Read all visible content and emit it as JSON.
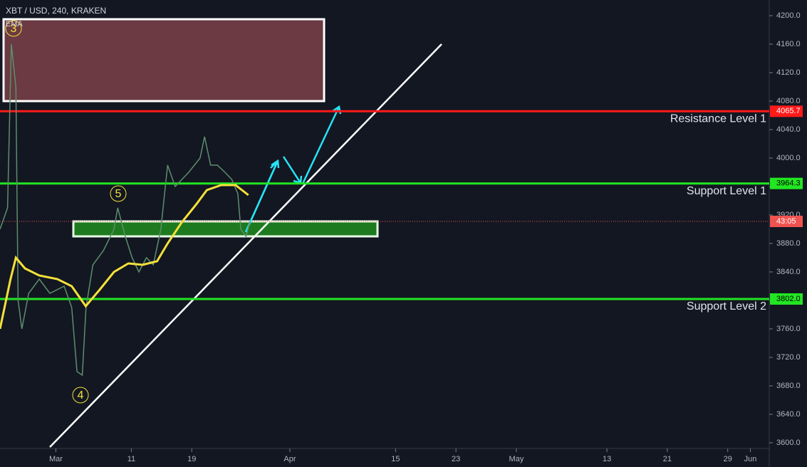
{
  "chart_data": {
    "type": "line",
    "title": "XBT / USD, 240, KRAKEN",
    "indicator": "EMA",
    "series": [
      {
        "name": "XBT / USD",
        "color": "#5c8f6b",
        "x": [
          -7.4,
          -6.4,
          -5.9,
          -5.3,
          -5.0,
          -4.5,
          -3.6,
          -2.2,
          -0.8,
          1.1,
          2.1,
          2.8,
          3.5,
          4.0,
          4.9,
          6.3,
          7.7,
          8.2,
          9.2,
          10.1,
          11.0,
          12.0,
          12.9,
          13.9,
          14.8,
          15.8,
          16.7,
          17.6,
          19.1,
          19.7,
          20.5,
          21.4,
          22.4,
          23.3,
          24.1,
          24.5,
          25.2,
          25.7
        ],
        "values": [
          3900,
          3930,
          4160,
          4100,
          3800,
          3760,
          3810,
          3830,
          3810,
          3820,
          3790,
          3700,
          3695,
          3790,
          3850,
          3870,
          3900,
          3930,
          3890,
          3860,
          3840,
          3860,
          3850,
          3900,
          3990,
          3960,
          3970,
          3980,
          4000,
          4030,
          3990,
          3990,
          3980,
          3970,
          3950,
          3900,
          3890,
          3910
        ]
      },
      {
        "name": "EMA",
        "color": "#f5e13a",
        "x": [
          -7.4,
          -6.0,
          -5.3,
          -4.1,
          -2.2,
          0.2,
          2.1,
          3.96,
          5.8,
          7.7,
          9.6,
          11.5,
          13.4,
          14.8,
          16.7,
          18.6,
          20.0,
          21.9,
          23.8,
          25.5
        ],
        "values": [
          3760,
          3830,
          3860,
          3845,
          3835,
          3830,
          3820,
          3792,
          3815,
          3840,
          3852,
          3850,
          3855,
          3880,
          3910,
          3935,
          3955,
          3962,
          3962,
          3948
        ]
      }
    ],
    "levels": [
      {
        "name": "Resistance Level 1",
        "value": 4065.7,
        "label": "4065.7",
        "color": "#ff1a1a"
      },
      {
        "name": "Support Level 1",
        "value": 3964.3,
        "label": "3964.3",
        "color": "#22e622"
      },
      {
        "name": "Support Level 2",
        "value": 3802.0,
        "label": "3802.0",
        "color": "#22e622"
      }
    ],
    "last_price": {
      "value": 3911,
      "label": "43:05",
      "color": "#ef5350"
    },
    "waves": [
      "3",
      "5",
      "4"
    ],
    "xlim": [
      -7.4,
      94.5
    ],
    "ylim": [
      3566,
      4222
    ],
    "xticks": [
      {
        "value": 0,
        "label": "Mar"
      },
      {
        "value": 10,
        "label": "11"
      },
      {
        "value": 18,
        "label": "19"
      },
      {
        "value": 31,
        "label": "Apr"
      },
      {
        "value": 45,
        "label": "15"
      },
      {
        "value": 53,
        "label": "23"
      },
      {
        "value": 61,
        "label": "May"
      },
      {
        "value": 73,
        "label": "13"
      },
      {
        "value": 81,
        "label": "21"
      },
      {
        "value": 89,
        "label": "29"
      },
      {
        "value": 92,
        "label": "Jun"
      }
    ],
    "yticks": [
      {
        "value": 3600,
        "label": "3600.0"
      },
      {
        "value": 3640,
        "label": "3640.0"
      },
      {
        "value": 3680,
        "label": "3680.0"
      },
      {
        "value": 3720,
        "label": "3720.0"
      },
      {
        "value": 3760,
        "label": "3760.0"
      },
      {
        "value": 3800,
        "label": "3800.0"
      },
      {
        "value": 3840,
        "label": "3840.0"
      },
      {
        "value": 3880,
        "label": "3880.0"
      },
      {
        "value": 3920,
        "label": "3920.0"
      },
      {
        "value": 3960,
        "label": "3960.0"
      },
      {
        "value": 4000,
        "label": "4000.0"
      },
      {
        "value": 4040,
        "label": "4040.0"
      },
      {
        "value": 4080,
        "label": "4080.0"
      },
      {
        "value": 4120,
        "label": "4120.0"
      },
      {
        "value": 4160,
        "label": "4160.0"
      },
      {
        "value": 4200,
        "label": "4200.0"
      }
    ]
  }
}
